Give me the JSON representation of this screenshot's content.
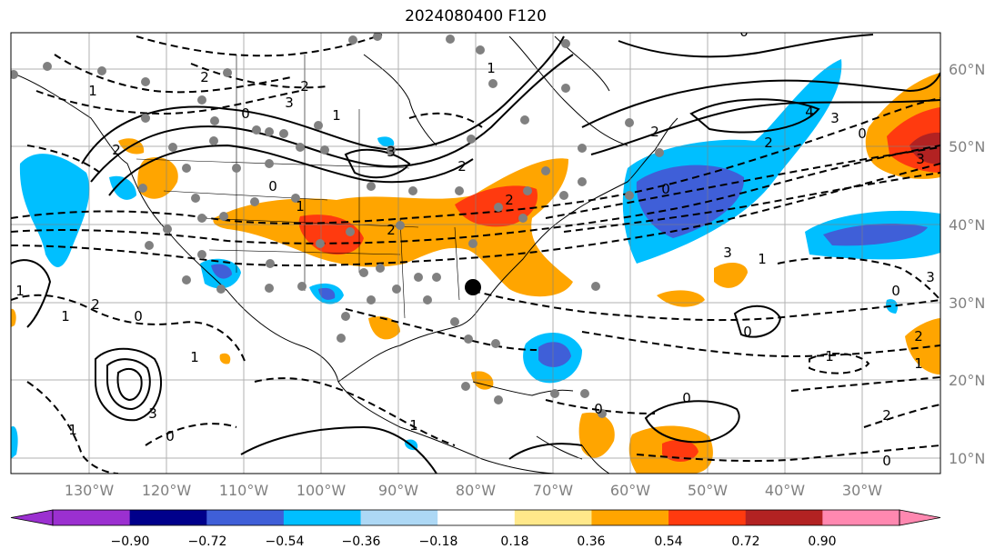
{
  "title": "2024080400 F120",
  "lat_labels": [
    "60°N",
    "50°N",
    "40°N",
    "30°N",
    "20°N",
    "10°N"
  ],
  "lon_labels": [
    "130°W",
    "120°W",
    "110°W",
    "100°W",
    "90°W",
    "80°W",
    "70°W",
    "60°W",
    "50°W",
    "40°W",
    "30°W"
  ],
  "colorbar": {
    "ticks": [
      "−0.90",
      "−0.72",
      "−0.54",
      "−0.36",
      "−0.18",
      "0.18",
      "0.36",
      "0.54",
      "0.72",
      "0.90"
    ],
    "colors": [
      "#9b30d0",
      "#00008b",
      "#3f5fd8",
      "#00bfff",
      "#add8f5",
      "#ffffff",
      "#ffe88a",
      "#ffa500",
      "#ff3a0f",
      "#b22222",
      "#ff88b0"
    ]
  },
  "contour_labels": [
    "1",
    "2",
    "2",
    "0",
    "3",
    "2",
    "3",
    "1",
    "2",
    "1",
    "0",
    "4",
    "3",
    "2",
    "2",
    "0",
    "3",
    "0",
    "2",
    "1",
    "3",
    "1",
    "0",
    "1",
    "3",
    "2",
    "1",
    "0",
    "1",
    "0",
    "0",
    "1",
    "2",
    "3",
    "0",
    "2",
    "1",
    "0",
    "1",
    "0",
    "2",
    "1",
    "0"
  ]
}
